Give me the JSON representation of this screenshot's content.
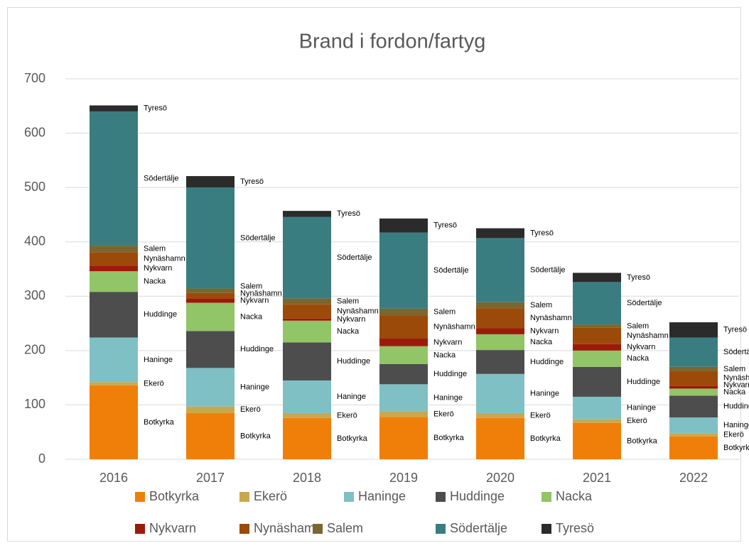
{
  "chart_data": {
    "type": "stacked_bar",
    "title": "Brand i fordon/fartyg",
    "categories": [
      "2016",
      "2017",
      "2018",
      "2019",
      "2020",
      "2021",
      "2022"
    ],
    "series": [
      {
        "name": "Botkyrka",
        "color": "#f07f09",
        "values": [
          136,
          85,
          76,
          78,
          76,
          67,
          42
        ]
      },
      {
        "name": "Ekerö",
        "color": "#c9a84d",
        "values": [
          6,
          12,
          9,
          10,
          9,
          7,
          6
        ]
      },
      {
        "name": "Haninge",
        "color": "#7fc0c4",
        "values": [
          82,
          71,
          60,
          50,
          72,
          41,
          29
        ]
      },
      {
        "name": "Huddinge",
        "color": "#4d4d4d",
        "values": [
          84,
          68,
          70,
          37,
          44,
          55,
          40
        ]
      },
      {
        "name": "Nacka",
        "color": "#92c468",
        "values": [
          38,
          52,
          40,
          33,
          29,
          30,
          13
        ]
      },
      {
        "name": "Nykvarn",
        "color": "#9c1a0b",
        "values": [
          10,
          8,
          4,
          14,
          11,
          12,
          5
        ]
      },
      {
        "name": "Nynäshamn",
        "color": "#9c4a0a",
        "values": [
          25,
          10,
          26,
          43,
          37,
          30,
          27
        ]
      },
      {
        "name": "Salem",
        "color": "#7a6630",
        "values": [
          12,
          8,
          11,
          12,
          11,
          6,
          8
        ]
      },
      {
        "name": "Södertälje",
        "color": "#3a7d80",
        "values": [
          247,
          186,
          150,
          140,
          118,
          78,
          54
        ]
      },
      {
        "name": "Tyresö",
        "color": "#2b2b2b",
        "values": [
          11,
          21,
          11,
          26,
          18,
          17,
          28
        ]
      }
    ],
    "ylim": [
      0,
      700
    ],
    "yticks": [
      0,
      100,
      200,
      300,
      400,
      500,
      600,
      700
    ],
    "grid": true
  }
}
